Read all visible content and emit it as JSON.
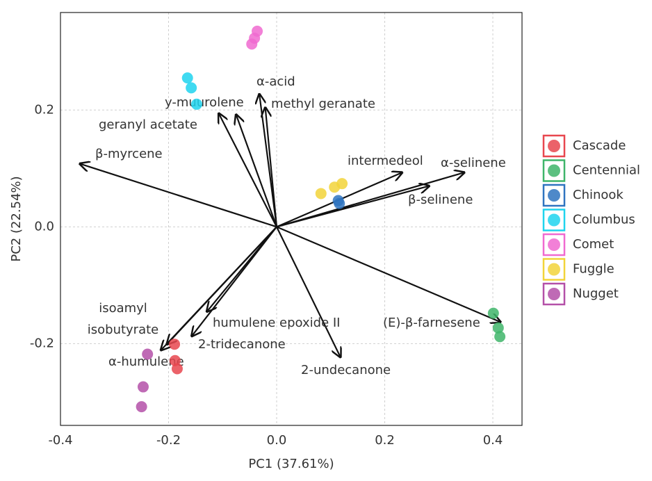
{
  "chart_data": {
    "type": "biplot",
    "x_label": "PC1 (37.61%)",
    "y_label": "PC2 (22.54%)",
    "xlim": [
      -0.4,
      0.454
    ],
    "ylim": [
      -0.34,
      0.367
    ],
    "xticks": [
      -0.4,
      -0.2,
      {
        "value": 0,
        "label": "0.0"
      },
      0.2,
      0.4
    ],
    "yticks": [
      -0.2,
      {
        "value": 0,
        "label": "0.0"
      },
      0.2
    ],
    "grid": true,
    "series": [
      {
        "name": "Cascade",
        "color": "#e8474f",
        "x": [
          -0.189,
          -0.188,
          -0.184
        ],
        "values": [
          -0.201,
          -0.229,
          -0.243
        ]
      },
      {
        "name": "Centennial",
        "color": "#3fb56a",
        "x": [
          0.401,
          0.41,
          0.413
        ],
        "values": [
          -0.148,
          -0.173,
          -0.188
        ]
      },
      {
        "name": "Chinook",
        "color": "#2f74c0",
        "x": [
          0.114,
          0.116
        ],
        "values": [
          0.045,
          0.04
        ]
      },
      {
        "name": "Columbus",
        "color": "#1fd4ee",
        "x": [
          -0.165,
          -0.158,
          -0.148
        ],
        "values": [
          0.255,
          0.238,
          0.21
        ]
      },
      {
        "name": "Comet",
        "color": "#f06ad0",
        "x": [
          -0.036,
          -0.041,
          -0.046
        ],
        "values": [
          0.335,
          0.323,
          0.313
        ]
      },
      {
        "name": "Fuggle",
        "color": "#f2d43a",
        "x": [
          0.082,
          0.107,
          0.121
        ],
        "values": [
          0.057,
          0.068,
          0.074
        ]
      },
      {
        "name": "Nugget",
        "color": "#b450a8",
        "x": [
          -0.239,
          -0.247,
          -0.25
        ],
        "values": [
          -0.218,
          -0.274,
          -0.308
        ]
      }
    ],
    "vectors": {
      "labels": [
        "β-myrcene",
        "geranyl acetate",
        "y-muurolene",
        "α-acid",
        "methyl geranate",
        "intermedeol",
        "α-selinene",
        "β-selinene",
        "(E)-β-farnesene",
        "2-undecanone",
        "humulene epoxide II",
        "2-tridecanone",
        "isoamyl isobutyrate",
        "α-humulene"
      ],
      "x": [
        -0.364,
        -0.107,
        -0.075,
        -0.032,
        -0.021,
        0.232,
        0.347,
        0.282,
        0.414,
        0.118,
        -0.129,
        -0.157,
        -0.203,
        -0.214
      ],
      "values": [
        0.108,
        0.194,
        0.192,
        0.227,
        0.204,
        0.093,
        0.093,
        0.07,
        -0.163,
        -0.223,
        -0.145,
        -0.187,
        -0.201,
        -0.211
      ]
    }
  }
}
